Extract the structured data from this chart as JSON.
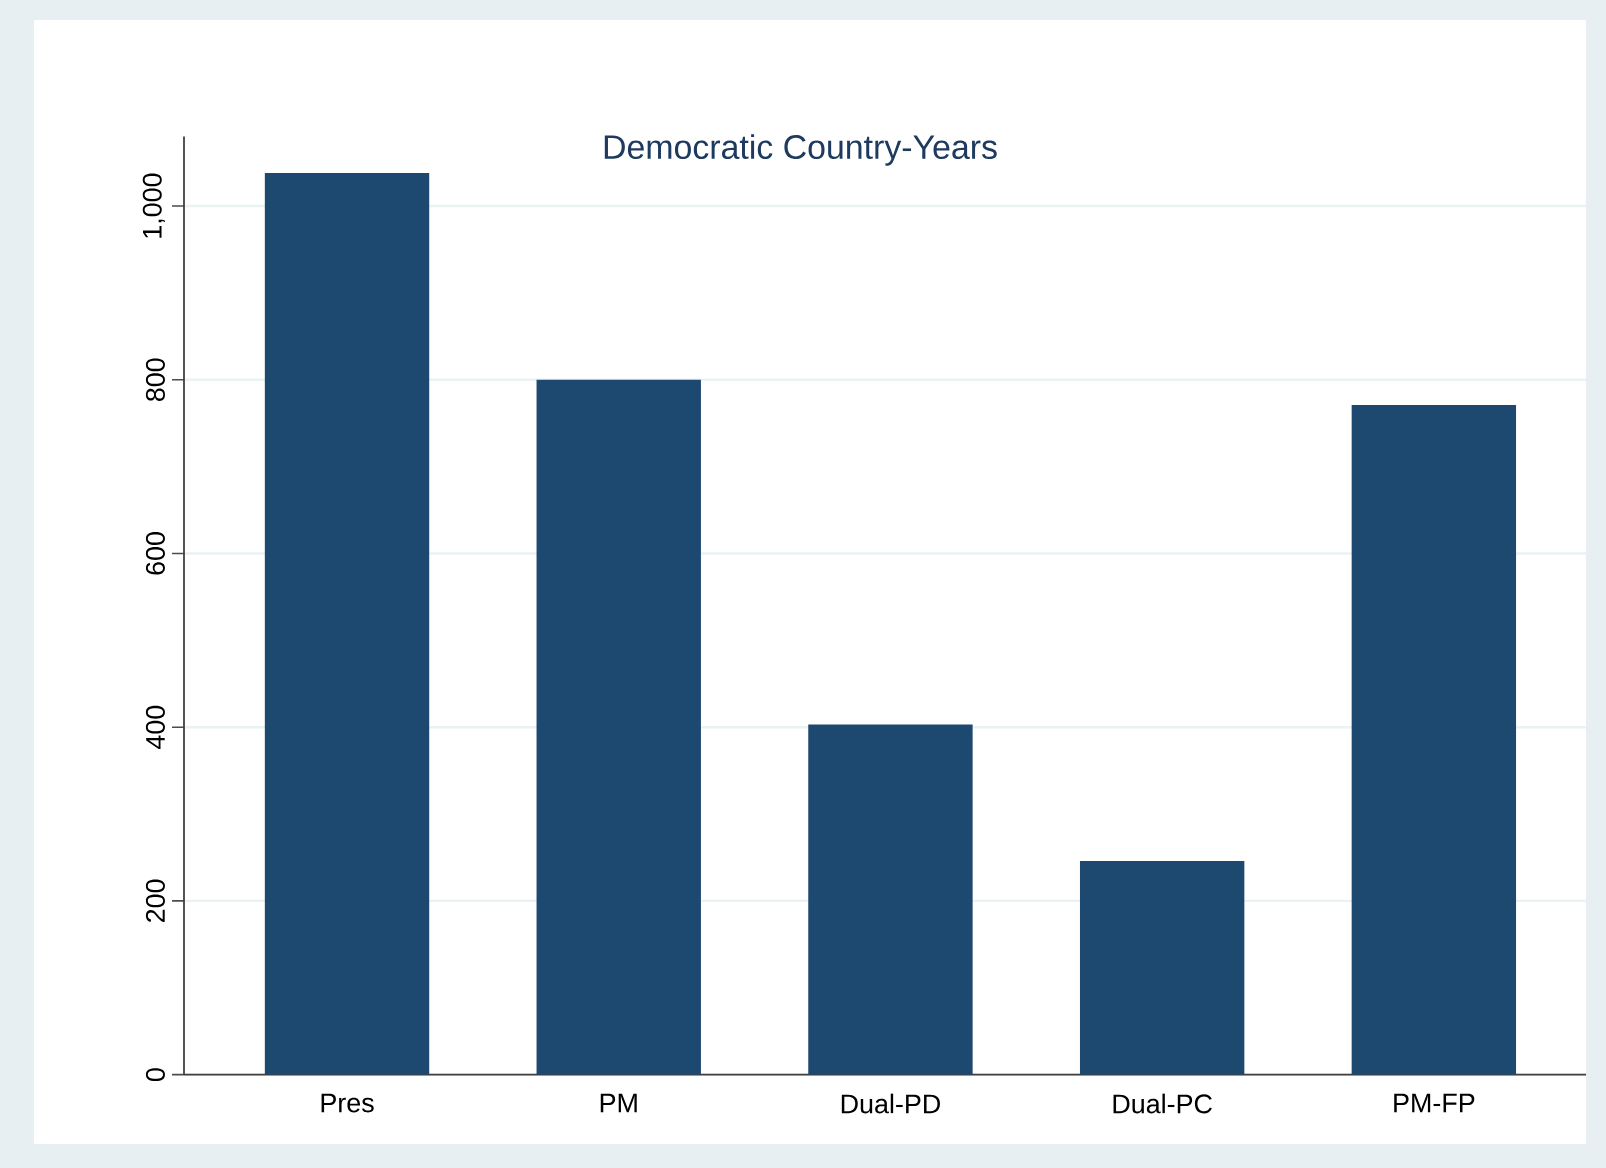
{
  "chart_data": {
    "type": "bar",
    "title": "Democratic Country-Years",
    "categories": [
      "Pres",
      "PM",
      "Dual-PD",
      "Dual-PC",
      "PM-FP"
    ],
    "values": [
      1038,
      800,
      403,
      246,
      771
    ],
    "color": "#1d4870",
    "ylim": [
      0,
      1080
    ],
    "yticks": [
      0,
      200,
      400,
      600,
      800,
      {
        "value": 1000,
        "label": "1,000"
      }
    ],
    "grid": "y"
  }
}
